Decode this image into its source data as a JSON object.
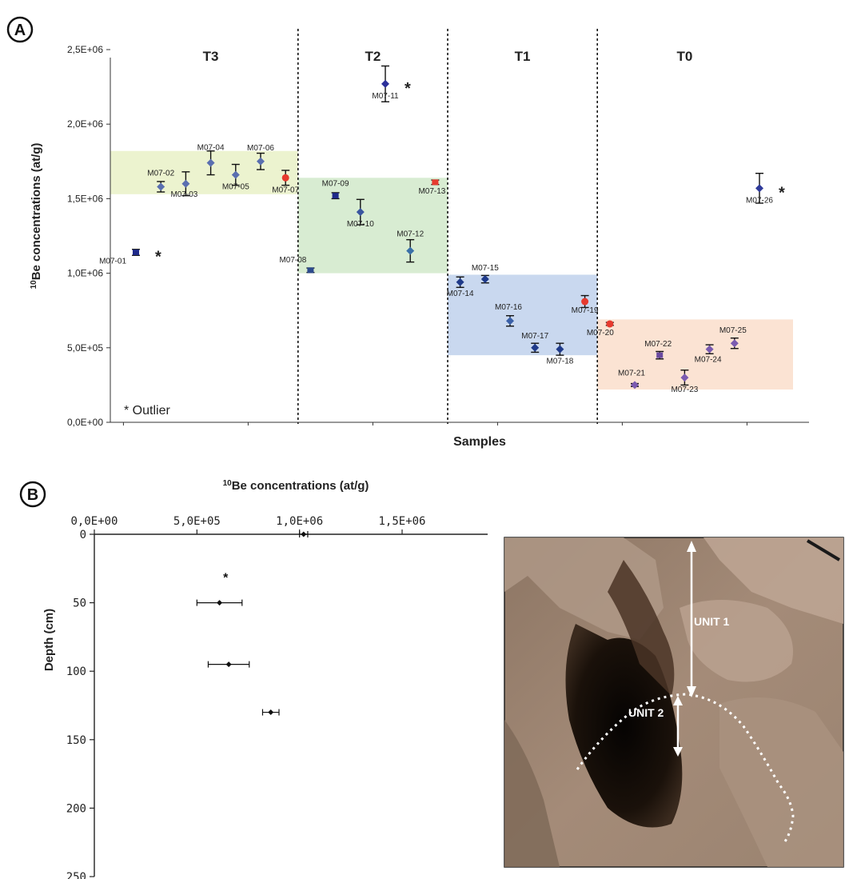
{
  "chart_data": [
    {
      "panel": "A",
      "type": "scatter",
      "xlabel": "Samples",
      "ylabel": "10Be concentrations (at/g)",
      "ylabel_sup": "10",
      "ylabel_rest": "Be concentrations (at/g)",
      "ylim": [
        0,
        2500000
      ],
      "yticks": [
        "0,0E+00",
        "5,0E+05",
        "1,0E+06",
        "1,5E+06",
        "2,0E+06",
        "2,5E+06"
      ],
      "legend": "* Outlier",
      "legend_position": "bottom-left",
      "terraces": [
        {
          "label": "T3",
          "y_range": [
            1530000,
            1820000
          ],
          "color": "#ecf3cf"
        },
        {
          "label": "T2",
          "y_range": [
            1000000,
            1640000
          ],
          "color": "#d8ecd2"
        },
        {
          "label": "T1",
          "y_range": [
            450000,
            990000
          ],
          "color": "#c9d8ef"
        },
        {
          "label": "T0",
          "y_range": [
            220000,
            690000
          ],
          "color": "#fbe3d3"
        }
      ],
      "points": [
        {
          "label": "M07-01",
          "terrace": "T3",
          "value": 1140000,
          "error": 20000,
          "marker": "square",
          "color": "#1f2a8a",
          "outlier": true
        },
        {
          "label": "M07-02",
          "terrace": "T3",
          "value": 1580000,
          "error": 35000,
          "marker": "diamond",
          "color": "#5a6fb0",
          "outlier": false
        },
        {
          "label": "M07-03",
          "terrace": "T3",
          "value": 1600000,
          "error": 80000,
          "marker": "diamond",
          "color": "#5a6fb0",
          "outlier": false
        },
        {
          "label": "M07-04",
          "terrace": "T3",
          "value": 1740000,
          "error": 80000,
          "marker": "diamond",
          "color": "#5a6fb0",
          "outlier": false
        },
        {
          "label": "M07-05",
          "terrace": "T3",
          "value": 1660000,
          "error": 70000,
          "marker": "diamond",
          "color": "#5a6fb0",
          "outlier": false
        },
        {
          "label": "M07-06",
          "terrace": "T3",
          "value": 1750000,
          "error": 55000,
          "marker": "diamond",
          "color": "#5a6fb0",
          "outlier": false
        },
        {
          "label": "M07-07",
          "terrace": "T3",
          "value": 1640000,
          "error": 50000,
          "marker": "circle",
          "color": "#e63a2e",
          "outlier": false
        },
        {
          "label": "M07-08",
          "terrace": "T2",
          "value": 1020000,
          "error": 15000,
          "marker": "square",
          "color": "#2c4a8c",
          "outlier": false
        },
        {
          "label": "M07-09",
          "terrace": "T2",
          "value": 1520000,
          "error": 20000,
          "marker": "square",
          "color": "#1f2a8a",
          "outlier": false
        },
        {
          "label": "M07-10",
          "terrace": "T2",
          "value": 1410000,
          "error": 85000,
          "marker": "diamond",
          "color": "#3a56a0",
          "outlier": false
        },
        {
          "label": "M07-11",
          "terrace": "T2",
          "value": 2270000,
          "error": 120000,
          "marker": "diamond",
          "color": "#2b2f9a",
          "outlier": true
        },
        {
          "label": "M07-12",
          "terrace": "T2",
          "value": 1150000,
          "error": 75000,
          "marker": "diamond",
          "color": "#3a70a8",
          "outlier": false
        },
        {
          "label": "M07-13",
          "terrace": "T2",
          "value": 1610000,
          "error": 15000,
          "marker": "square",
          "color": "#e63a2e",
          "outlier": false
        },
        {
          "label": "M07-14",
          "terrace": "T1",
          "value": 940000,
          "error": 35000,
          "marker": "diamond",
          "color": "#1f3a8a",
          "outlier": false
        },
        {
          "label": "M07-15",
          "terrace": "T1",
          "value": 960000,
          "error": 25000,
          "marker": "diamond",
          "color": "#1f3a8a",
          "outlier": false
        },
        {
          "label": "M07-16",
          "terrace": "T1",
          "value": 680000,
          "error": 35000,
          "marker": "diamond",
          "color": "#3a60a8",
          "outlier": false
        },
        {
          "label": "M07-17",
          "terrace": "T1",
          "value": 500000,
          "error": 30000,
          "marker": "diamond",
          "color": "#1f3a8a",
          "outlier": false
        },
        {
          "label": "M07-18",
          "terrace": "T1",
          "value": 490000,
          "error": 40000,
          "marker": "diamond",
          "color": "#1f3a8a",
          "outlier": false
        },
        {
          "label": "M07-19",
          "terrace": "T1",
          "value": 810000,
          "error": 40000,
          "marker": "circle",
          "color": "#e63a2e",
          "outlier": false
        },
        {
          "label": "M07-20",
          "terrace": "T0",
          "value": 660000,
          "error": 10000,
          "marker": "circle",
          "color": "#e63a2e",
          "outlier": false
        },
        {
          "label": "M07-21",
          "terrace": "T0",
          "value": 250000,
          "error": 10000,
          "marker": "diamond",
          "color": "#7a5ab0",
          "outlier": false
        },
        {
          "label": "M07-22",
          "terrace": "T0",
          "value": 450000,
          "error": 25000,
          "marker": "square",
          "color": "#6a4aa0",
          "outlier": false
        },
        {
          "label": "M07-23",
          "terrace": "T0",
          "value": 300000,
          "error": 50000,
          "marker": "diamond",
          "color": "#7a5ab0",
          "outlier": false
        },
        {
          "label": "M07-24",
          "terrace": "T0",
          "value": 490000,
          "error": 30000,
          "marker": "diamond",
          "color": "#7a5ab0",
          "outlier": false
        },
        {
          "label": "M07-25",
          "terrace": "T0",
          "value": 530000,
          "error": 35000,
          "marker": "diamond",
          "color": "#7a5ab0",
          "outlier": false
        },
        {
          "label": "M07-26",
          "terrace": "T0",
          "value": 1570000,
          "error": 100000,
          "marker": "diamond",
          "color": "#2f3a9a",
          "outlier": true
        }
      ]
    },
    {
      "panel": "B",
      "type": "scatter",
      "xlabel": "10Be concentrations (at/g)",
      "xlabel_sup": "10",
      "xlabel_rest": "Be concentrations (at/g)",
      "ylabel": "Depth (cm)",
      "xlim": [
        0,
        1800000
      ],
      "ylim": [
        0,
        250
      ],
      "xticks": [
        "0,0E+00",
        "5,0E+05",
        "1,0E+06",
        "1,5E+06"
      ],
      "xtick_values": [
        0,
        500000,
        1000000,
        1500000
      ],
      "yticks": [
        0,
        50,
        100,
        150,
        200,
        250
      ],
      "y_inverted": true,
      "x_axis_position": "top",
      "points": [
        {
          "depth": 0,
          "value": 1020000,
          "error": 20000,
          "outlier_mark": false
        },
        {
          "depth": 30,
          "value": 640000,
          "error": 0,
          "outlier_mark": true
        },
        {
          "depth": 50,
          "value": 610000,
          "error": 110000,
          "outlier_mark": false
        },
        {
          "depth": 95,
          "value": 655000,
          "error": 100000,
          "outlier_mark": false
        },
        {
          "depth": 130,
          "value": 860000,
          "error": 40000,
          "outlier_mark": false
        }
      ]
    }
  ],
  "panels": {
    "a": "A",
    "b": "B"
  },
  "photo": {
    "unit1_label": "UNIT 1",
    "unit2_label": "UNIT 2"
  }
}
